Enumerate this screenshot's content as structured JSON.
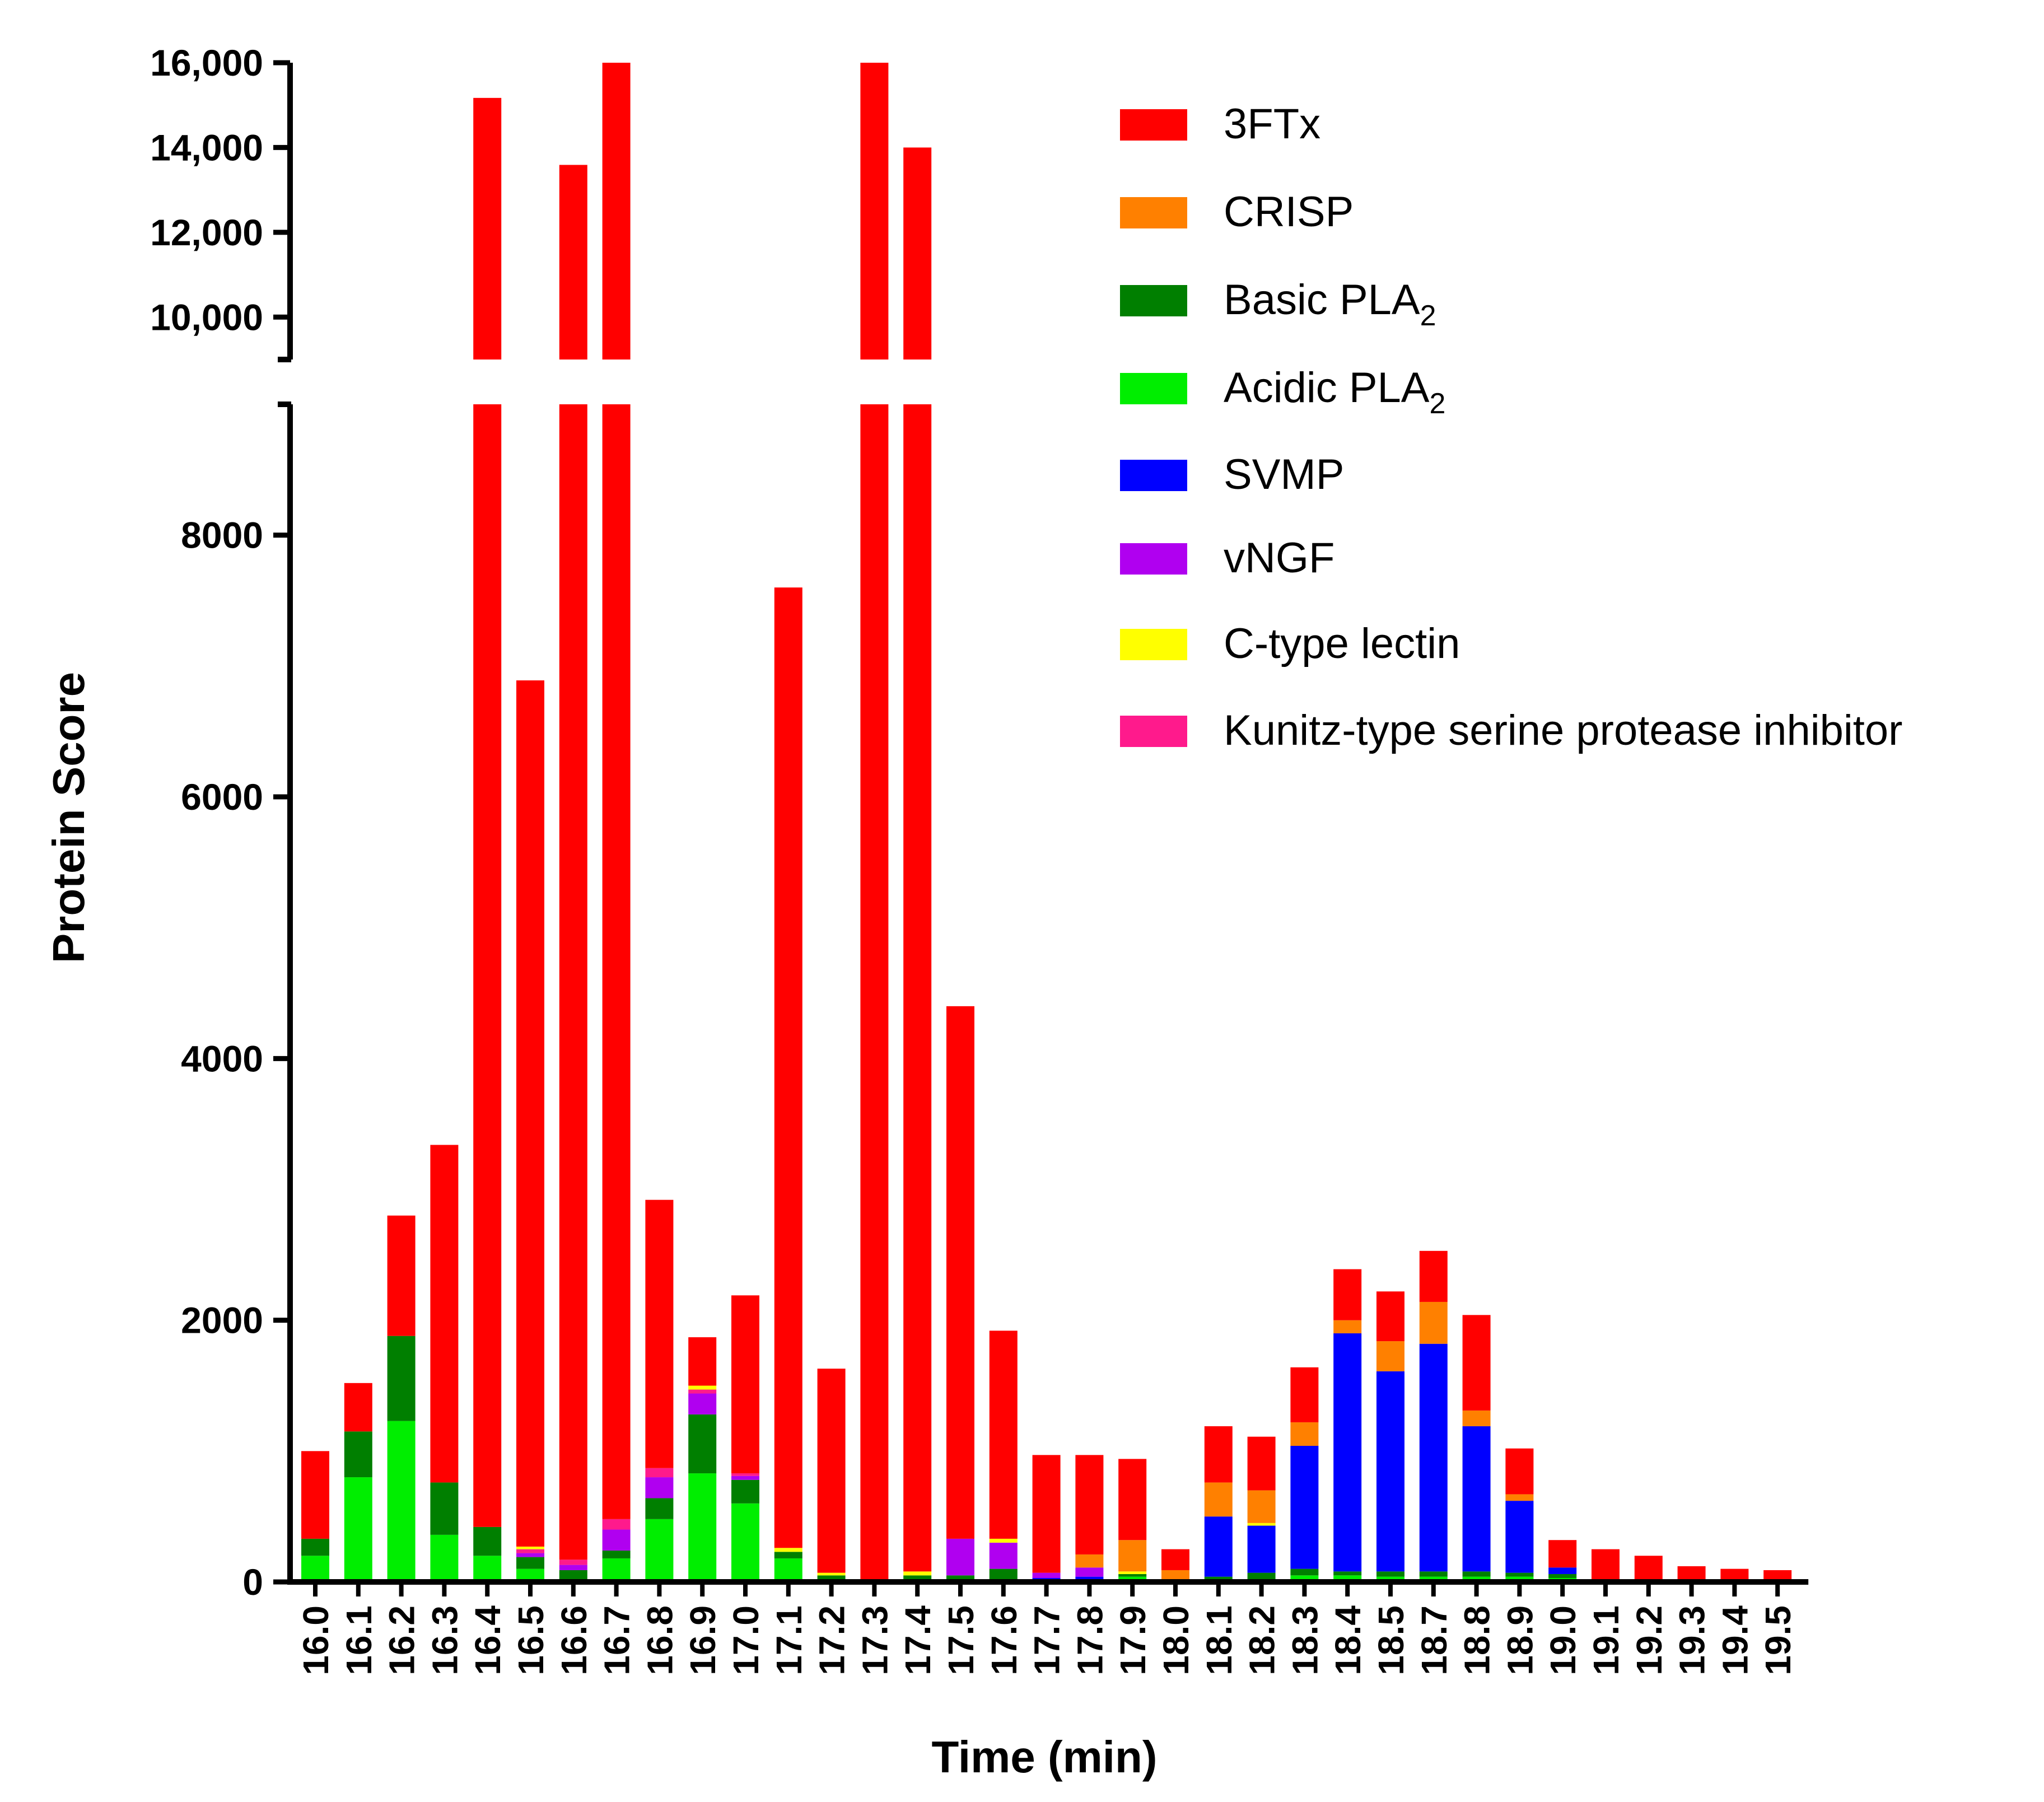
{
  "chart_data": {
    "type": "bar",
    "stacked": true,
    "xlabel": "Time (min)",
    "ylabel": "Protein Score",
    "y_axis_break": {
      "lower_range": [
        0,
        9000
      ],
      "upper_range": [
        9000,
        16000
      ]
    },
    "lower_ticks": [
      {
        "value": 0,
        "label": "0"
      },
      {
        "value": 2000,
        "label": "2000"
      },
      {
        "value": 4000,
        "label": "4000"
      },
      {
        "value": 6000,
        "label": "6000"
      },
      {
        "value": 8000,
        "label": "8000"
      }
    ],
    "upper_ticks": [
      {
        "value": 10000,
        "label": "10,000"
      },
      {
        "value": 12000,
        "label": "12,000"
      },
      {
        "value": 14000,
        "label": "14,000"
      },
      {
        "value": 16000,
        "label": "16,000"
      }
    ],
    "categories": [
      "16.0",
      "16.1",
      "16.2",
      "16.3",
      "16.4",
      "16.5",
      "16.6",
      "16.7",
      "16.8",
      "16.9",
      "17.0",
      "17.1",
      "17.2",
      "17.3",
      "17.4",
      "17.5",
      "17.6",
      "17.7",
      "17.8",
      "17.9",
      "18.0",
      "18.1",
      "18.2",
      "18.3",
      "18.4",
      "18.5",
      "18.7",
      "18.8",
      "18.9",
      "19.0",
      "19.1",
      "19.2",
      "19.3",
      "19.4",
      "19.5"
    ],
    "series": [
      {
        "name": "Acidic PLA2",
        "name_main": "Acidic PLA",
        "name_sub": "2",
        "color": "#00ee00",
        "values": [
          200,
          800,
          1230,
          360,
          200,
          100,
          0,
          180,
          480,
          830,
          600,
          180,
          0,
          0,
          0,
          0,
          0,
          0,
          0,
          40,
          0,
          20,
          20,
          50,
          50,
          40,
          40,
          40,
          40,
          30,
          0,
          0,
          0,
          0,
          0
        ]
      },
      {
        "name": "Basic PLA2",
        "name_main": "Basic PLA",
        "name_sub": "2",
        "color": "#007f00",
        "values": [
          130,
          350,
          650,
          400,
          220,
          90,
          90,
          60,
          160,
          450,
          180,
          50,
          50,
          0,
          50,
          50,
          100,
          0,
          0,
          20,
          0,
          20,
          50,
          50,
          30,
          40,
          40,
          40,
          30,
          30,
          0,
          0,
          0,
          0,
          0
        ]
      },
      {
        "name": "SVMP",
        "name_main": "SVMP",
        "name_sub": "",
        "color": "#0000ff",
        "values": [
          0,
          0,
          0,
          0,
          0,
          0,
          0,
          0,
          0,
          0,
          0,
          0,
          0,
          0,
          0,
          0,
          0,
          30,
          40,
          0,
          0,
          460,
          360,
          940,
          1820,
          1530,
          1740,
          1110,
          550,
          50,
          0,
          0,
          0,
          0,
          0
        ]
      },
      {
        "name": "vNGF",
        "name_main": "vNGF",
        "name_sub": "",
        "color": "#b000f0",
        "values": [
          0,
          0,
          0,
          0,
          0,
          30,
          40,
          160,
          160,
          160,
          30,
          0,
          0,
          0,
          0,
          280,
          200,
          40,
          70,
          0,
          0,
          0,
          0,
          0,
          0,
          0,
          0,
          0,
          0,
          0,
          0,
          0,
          0,
          0,
          0
        ]
      },
      {
        "name": "Kunitz-type serine protease inhibitor",
        "name_main": "Kunitz-type serine protease inhibitor",
        "name_sub": "",
        "color": "#ff1a8c",
        "values": [
          0,
          0,
          0,
          0,
          0,
          30,
          40,
          80,
          70,
          30,
          20,
          0,
          0,
          0,
          0,
          0,
          0,
          0,
          0,
          0,
          0,
          0,
          0,
          0,
          0,
          0,
          0,
          0,
          0,
          0,
          0,
          0,
          0,
          0,
          0
        ]
      },
      {
        "name": "C-type lectin",
        "name_main": "C-type lectin",
        "name_sub": "",
        "color": "#ffff00",
        "values": [
          0,
          0,
          0,
          0,
          0,
          20,
          0,
          0,
          0,
          30,
          0,
          30,
          20,
          0,
          30,
          0,
          30,
          0,
          0,
          20,
          0,
          0,
          20,
          0,
          0,
          0,
          0,
          0,
          0,
          0,
          0,
          0,
          0,
          0,
          0
        ]
      },
      {
        "name": "CRISP",
        "name_main": "CRISP",
        "name_sub": "",
        "color": "#ff8000",
        "values": [
          0,
          0,
          0,
          0,
          0,
          0,
          0,
          0,
          0,
          0,
          0,
          0,
          0,
          0,
          0,
          0,
          0,
          0,
          100,
          240,
          90,
          260,
          250,
          180,
          100,
          230,
          320,
          120,
          50,
          0,
          0,
          0,
          0,
          0,
          0
        ]
      },
      {
        "name": "3FTx",
        "name_main": "3FTx",
        "name_sub": "",
        "color": "#ff0000",
        "values": [
          670,
          370,
          920,
          2580,
          14750,
          6620,
          13420,
          15710,
          2050,
          370,
          1360,
          7340,
          1560,
          16000,
          13920,
          4070,
          1590,
          900,
          760,
          620,
          160,
          430,
          410,
          420,
          390,
          380,
          390,
          730,
          350,
          210,
          250,
          200,
          120,
          100,
          90
        ]
      }
    ],
    "legend_order": [
      "3FTx",
      "CRISP",
      "Basic PLA2",
      "Acidic PLA2",
      "SVMP",
      "vNGF",
      "C-type lectin",
      "Kunitz-type serine protease inhibitor"
    ],
    "legend_position": "top-right"
  }
}
